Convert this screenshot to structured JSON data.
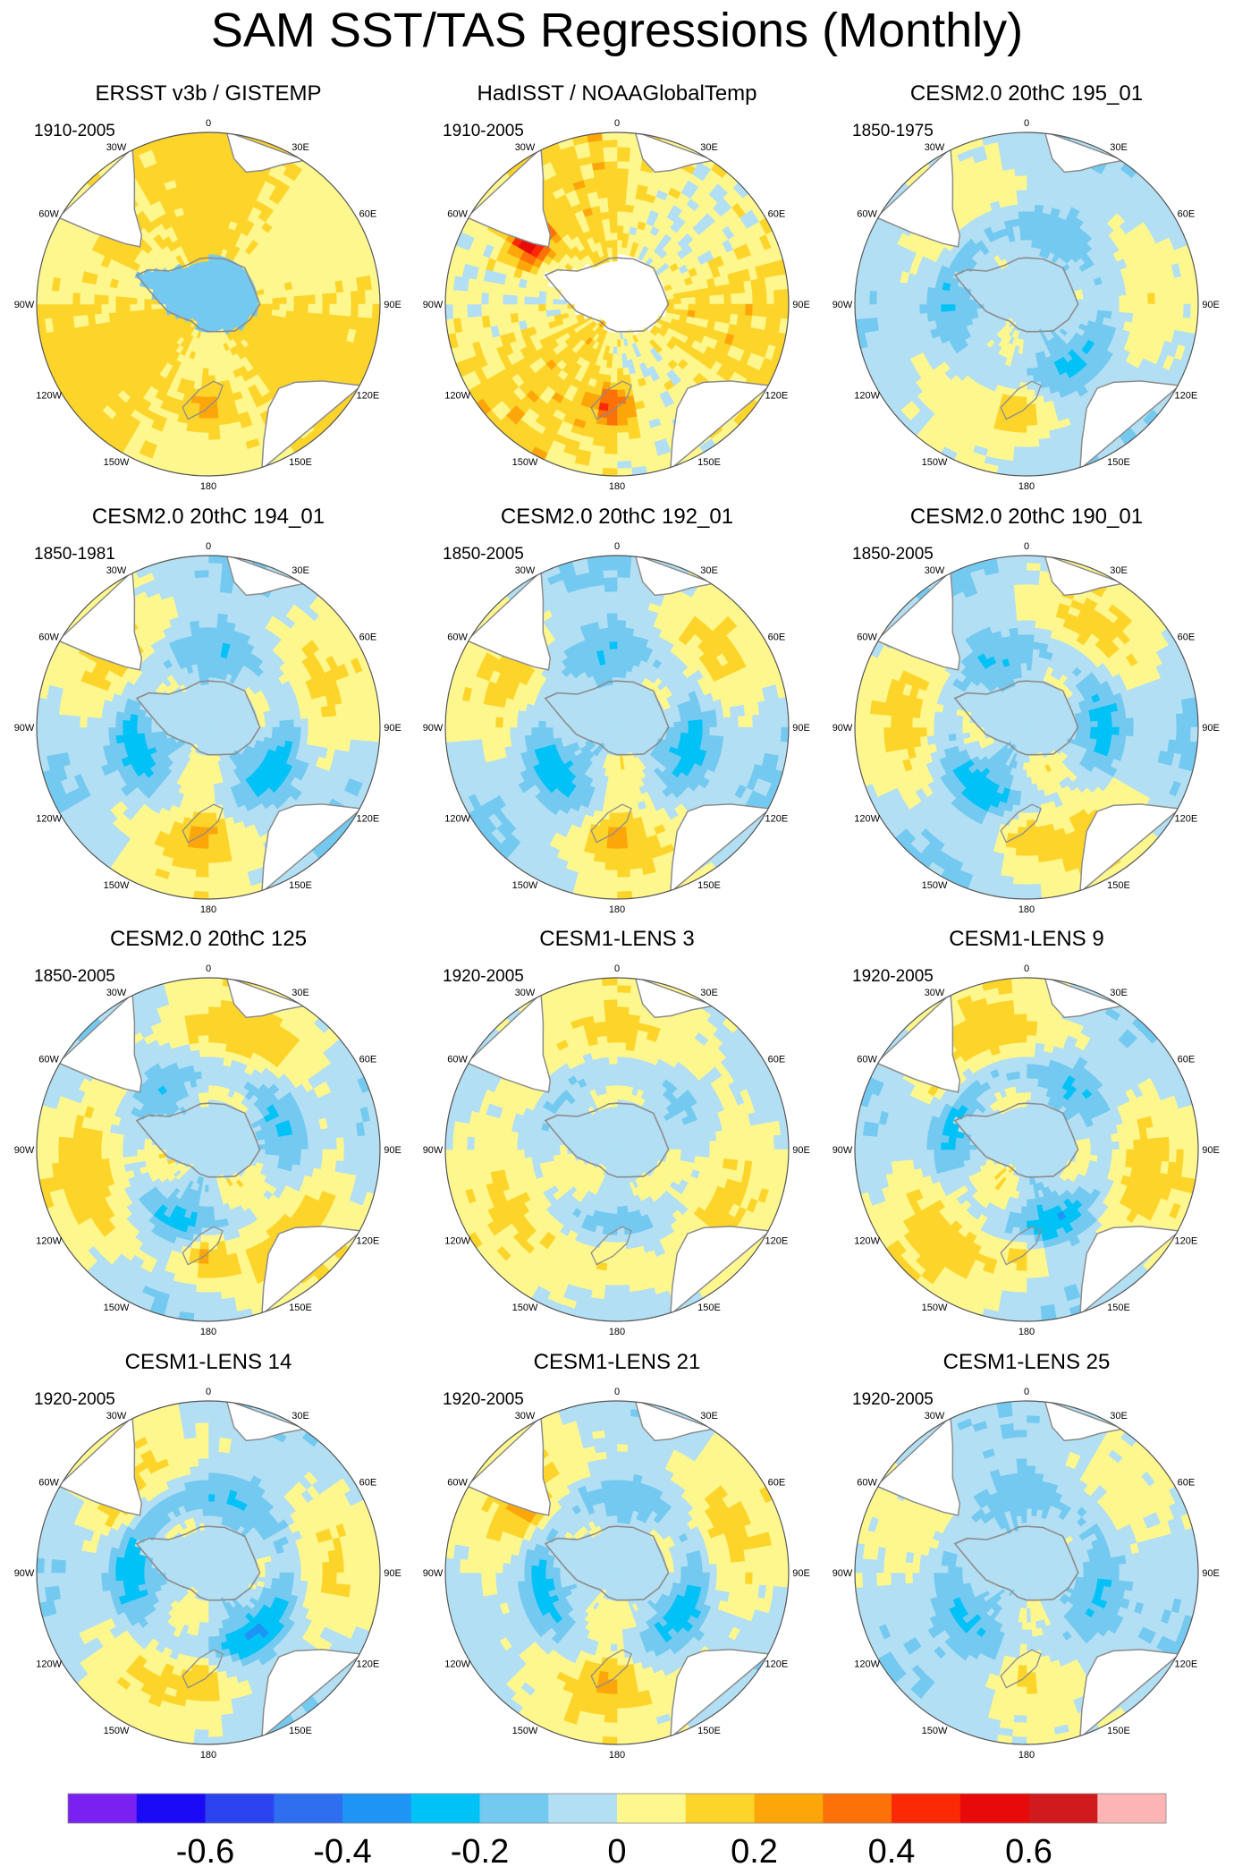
{
  "title": "SAM SST/TAS Regressions (Monthly)",
  "longitude_labels": [
    "0",
    "30E",
    "60E",
    "90E",
    "120E",
    "150E",
    "180",
    "150W",
    "120W",
    "90W",
    "60W",
    "30W"
  ],
  "chart_data": [
    {
      "type": "heatmap",
      "title": "ERSST v3b / GISTEMP",
      "period": "1910-2005",
      "projection": "south polar stereographic",
      "pattern": {
        "base": 0.1,
        "wave_amp": 0.05,
        "ring_inner": 0.0,
        "ring_outer": 0.0,
        "antarctica": -0.15,
        "nz_max": 0.2,
        "noise": 0.04,
        "patagonia_max": 0.15,
        "masked_pole": false
      }
    },
    {
      "type": "heatmap",
      "title": "HadISST / NOAAGlobalTemp",
      "period": "1910-2005",
      "projection": "south polar stereographic",
      "pattern": {
        "base": 0.08,
        "wave_amp": 0.06,
        "ring_inner": -0.02,
        "ring_outer": 0.0,
        "antarctica": null,
        "nz_max": 0.35,
        "noise": 0.08,
        "patagonia_max": 0.5,
        "masked_pole": true
      }
    },
    {
      "type": "heatmap",
      "title": "CESM2.0 20thC 195_01",
      "period": "1850-1975",
      "projection": "south polar stereographic",
      "pattern": {
        "base": -0.04,
        "wave_amp": 0.06,
        "ring_inner": -0.12,
        "ring_outer": 0.06,
        "antarctica": -0.08,
        "nz_max": 0.18,
        "noise": 0.03,
        "patagonia_max": 0.05,
        "masked_pole": false
      }
    },
    {
      "type": "heatmap",
      "title": "CESM2.0 20thC 194_01",
      "period": "1850-1981",
      "projection": "south polar stereographic",
      "pattern": {
        "base": -0.02,
        "wave_amp": 0.1,
        "ring_inner": -0.15,
        "ring_outer": 0.05,
        "antarctica": -0.1,
        "nz_max": 0.15,
        "noise": 0.03,
        "patagonia_max": 0.05,
        "masked_pole": false
      }
    },
    {
      "type": "heatmap",
      "title": "CESM2.0 20thC 192_01",
      "period": "1850-2005",
      "projection": "south polar stereographic",
      "pattern": {
        "base": -0.02,
        "wave_amp": 0.1,
        "ring_inner": -0.15,
        "ring_outer": 0.05,
        "antarctica": -0.1,
        "nz_max": 0.15,
        "noise": 0.03,
        "patagonia_max": 0.05,
        "masked_pole": false
      }
    },
    {
      "type": "heatmap",
      "title": "CESM2.0 20thC 190_01",
      "period": "1850-2005",
      "projection": "south polar stereographic",
      "pattern": {
        "base": -0.02,
        "wave_amp": 0.1,
        "ring_inner": -0.15,
        "ring_outer": 0.06,
        "antarctica": -0.05,
        "nz_max": 0.15,
        "noise": 0.03,
        "patagonia_max": 0.05,
        "masked_pole": false
      }
    },
    {
      "type": "heatmap",
      "title": "CESM2.0 20thC 125",
      "period": "1850-2005",
      "projection": "south polar stereographic",
      "pattern": {
        "base": 0.0,
        "wave_amp": 0.1,
        "ring_inner": -0.15,
        "ring_outer": 0.08,
        "antarctica": -0.05,
        "nz_max": 0.25,
        "noise": 0.03,
        "patagonia_max": 0.1,
        "masked_pole": false
      }
    },
    {
      "type": "heatmap",
      "title": "CESM1-LENS 3",
      "period": "1920-2005",
      "projection": "south polar stereographic",
      "pattern": {
        "base": 0.02,
        "wave_amp": 0.06,
        "ring_inner": -0.12,
        "ring_outer": 0.05,
        "antarctica": -0.02,
        "nz_max": 0.12,
        "noise": 0.03,
        "patagonia_max": 0.1,
        "masked_pole": false
      }
    },
    {
      "type": "heatmap",
      "title": "CESM1-LENS 9",
      "period": "1920-2005",
      "projection": "south polar stereographic",
      "pattern": {
        "base": 0.0,
        "wave_amp": 0.1,
        "ring_inner": -0.18,
        "ring_outer": 0.06,
        "antarctica": -0.05,
        "nz_max": 0.15,
        "noise": 0.03,
        "patagonia_max": 0.1,
        "masked_pole": false
      }
    },
    {
      "type": "heatmap",
      "title": "CESM1-LENS 14",
      "period": "1920-2005",
      "projection": "south polar stereographic",
      "pattern": {
        "base": -0.02,
        "wave_amp": 0.08,
        "ring_inner": -0.2,
        "ring_outer": 0.06,
        "antarctica": -0.02,
        "nz_max": 0.15,
        "noise": 0.03,
        "patagonia_max": 0.1,
        "masked_pole": false
      }
    },
    {
      "type": "heatmap",
      "title": "CESM1-LENS 21",
      "period": "1920-2005",
      "projection": "south polar stereographic",
      "pattern": {
        "base": 0.0,
        "wave_amp": 0.08,
        "ring_inner": -0.18,
        "ring_outer": 0.06,
        "antarctica": -0.02,
        "nz_max": 0.12,
        "noise": 0.03,
        "patagonia_max": 0.15,
        "masked_pole": false
      }
    },
    {
      "type": "heatmap",
      "title": "CESM1-LENS 25",
      "period": "1920-2005",
      "projection": "south polar stereographic",
      "pattern": {
        "base": -0.04,
        "wave_amp": 0.06,
        "ring_inner": -0.12,
        "ring_outer": 0.02,
        "antarctica": -0.05,
        "nz_max": 0.12,
        "noise": 0.03,
        "patagonia_max": 0.05,
        "masked_pole": false
      }
    }
  ],
  "colorbar": {
    "levels": [
      -0.7,
      -0.6,
      -0.5,
      -0.4,
      -0.3,
      -0.2,
      -0.1,
      0,
      0.1,
      0.2,
      0.3,
      0.4,
      0.5,
      0.6,
      0.7
    ],
    "colors": [
      "#7a20f0",
      "#1a0af5",
      "#2c44f0",
      "#2f6fef",
      "#1e94f5",
      "#00c2f7",
      "#74c9f0",
      "#b2dff3",
      "#fef78e",
      "#fdd42a",
      "#fda60a",
      "#fc7208",
      "#fb2a05",
      "#e80a0a",
      "#d01a1d",
      "#fcb4b4"
    ],
    "tick_labels": [
      "-0.6",
      "-0.4",
      "-0.2",
      "0",
      "0.2",
      "0.4",
      "0.6"
    ],
    "tick_values": [
      -0.6,
      -0.4,
      -0.2,
      0,
      0.2,
      0.4,
      0.6
    ]
  },
  "colors": {
    "coast": "#8c8c8c",
    "circle": "#555555",
    "masked": "#ffffff",
    "land": "#ffffff"
  }
}
